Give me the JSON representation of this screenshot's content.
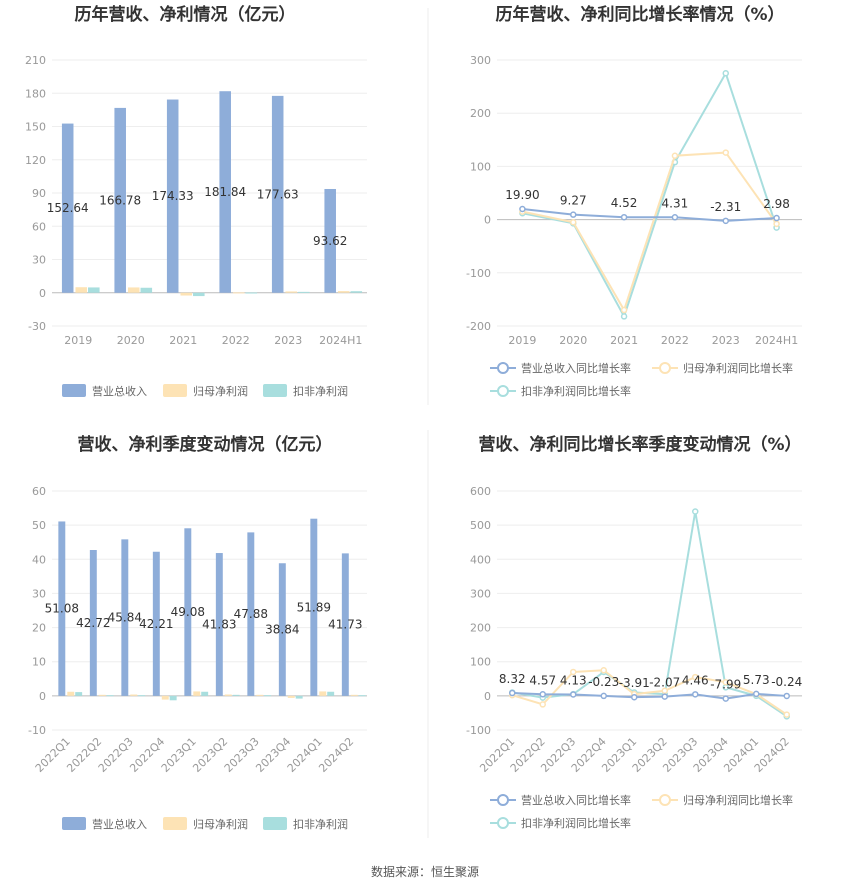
{
  "source": "数据来源：恒生聚源",
  "chart_data": [
    {
      "type": "bar",
      "title": "历年营收、净利情况（亿元）",
      "categories": [
        "2019",
        "2020",
        "2021",
        "2022",
        "2023",
        "2024H1"
      ],
      "ylim": [
        -30,
        210
      ],
      "yticks": [
        -30,
        0,
        30,
        60,
        90,
        120,
        150,
        180,
        210
      ],
      "grid": true,
      "legend_position": "bottom",
      "series": [
        {
          "name": "营业总收入",
          "color": "#8eadd9",
          "values": [
            152.64,
            166.78,
            174.33,
            181.84,
            177.63,
            93.62
          ],
          "labels": [
            "152.64",
            "166.78",
            "174.33",
            "181.84",
            "177.63",
            "93.62"
          ]
        },
        {
          "name": "归母净利润",
          "color": "#fde3b5",
          "values": [
            5.0,
            4.8,
            -2.5,
            0.3,
            1.2,
            1.5
          ]
        },
        {
          "name": "扣非净利润",
          "color": "#a8dede",
          "values": [
            4.8,
            4.5,
            -3.0,
            0.2,
            0.8,
            1.4
          ]
        }
      ]
    },
    {
      "type": "line",
      "title": "历年营收、净利同比增长率情况（%）",
      "categories": [
        "2019",
        "2020",
        "2021",
        "2022",
        "2023",
        "2024H1"
      ],
      "ylim": [
        -200,
        300
      ],
      "yticks": [
        -200,
        -100,
        0,
        100,
        200,
        300
      ],
      "grid": true,
      "legend_position": "bottom",
      "series": [
        {
          "name": "营业总收入同比增长率",
          "color": "#8eadd9",
          "values": [
            19.9,
            9.27,
            4.52,
            4.31,
            -2.31,
            2.98
          ],
          "labels": [
            "19.90",
            "9.27",
            "4.52",
            "4.31",
            "-2.31",
            "2.98"
          ]
        },
        {
          "name": "归母净利润同比增长率",
          "color": "#fde3b5",
          "values": [
            15,
            -5,
            -170,
            120,
            126,
            -8
          ]
        },
        {
          "name": "扣非净利润同比增长率",
          "color": "#a8dede",
          "values": [
            12,
            -7,
            -182,
            108,
            275,
            -15
          ]
        }
      ]
    },
    {
      "type": "bar",
      "title": "营收、净利季度变动情况（亿元）",
      "categories": [
        "2022Q1",
        "2022Q2",
        "2022Q3",
        "2022Q4",
        "2023Q1",
        "2023Q2",
        "2023Q3",
        "2023Q4",
        "2024Q1",
        "2024Q2"
      ],
      "ylim": [
        -10,
        60
      ],
      "yticks": [
        -10,
        0,
        10,
        20,
        30,
        40,
        50,
        60
      ],
      "grid": true,
      "legend_position": "bottom",
      "series": [
        {
          "name": "营业总收入",
          "color": "#8eadd9",
          "values": [
            51.08,
            42.72,
            45.84,
            42.21,
            49.08,
            41.83,
            47.88,
            38.84,
            51.89,
            41.73
          ],
          "labels": [
            "51.08",
            "42.72",
            "45.84",
            "42.21",
            "49.08",
            "41.83",
            "47.88",
            "38.84",
            "51.89",
            "41.73"
          ]
        },
        {
          "name": "归母净利润",
          "color": "#fde3b5",
          "values": [
            1.2,
            0.3,
            0.4,
            -1.1,
            1.3,
            0.4,
            0.3,
            -0.6,
            1.3,
            0.3
          ]
        },
        {
          "name": "扣非净利润",
          "color": "#a8dede",
          "values": [
            1.1,
            0.2,
            0.2,
            -1.3,
            1.2,
            0.3,
            0.2,
            -0.8,
            1.2,
            0.2
          ]
        }
      ]
    },
    {
      "type": "line",
      "title": "营收、净利同比增长率季度变动情况（%）",
      "categories": [
        "2022Q1",
        "2022Q2",
        "2022Q3",
        "2022Q4",
        "2023Q1",
        "2023Q2",
        "2023Q3",
        "2023Q4",
        "2024Q1",
        "2024Q2"
      ],
      "ylim": [
        -100,
        600
      ],
      "yticks": [
        -100,
        0,
        100,
        200,
        300,
        400,
        500,
        600
      ],
      "grid": true,
      "legend_position": "bottom",
      "series": [
        {
          "name": "营业总收入同比增长率",
          "color": "#8eadd9",
          "values": [
            8.32,
            4.57,
            4.13,
            -0.23,
            -3.91,
            -2.07,
            4.46,
            -7.99,
            5.73,
            -0.24
          ],
          "labels": [
            "8.32",
            "4.57",
            "4.13",
            "-0.23",
            "-3.91",
            "-2.07",
            "4.46",
            "-7.99",
            "5.73",
            "-0.24"
          ]
        },
        {
          "name": "归母净利润同比增长率",
          "color": "#fde3b5",
          "values": [
            2,
            -25,
            70,
            75,
            5,
            15,
            55,
            40,
            5,
            -55
          ]
        },
        {
          "name": "扣非净利润同比增长率",
          "color": "#a8dede",
          "values": [
            10,
            -5,
            5,
            70,
            10,
            5,
            540,
            25,
            0,
            -60
          ]
        }
      ]
    }
  ]
}
